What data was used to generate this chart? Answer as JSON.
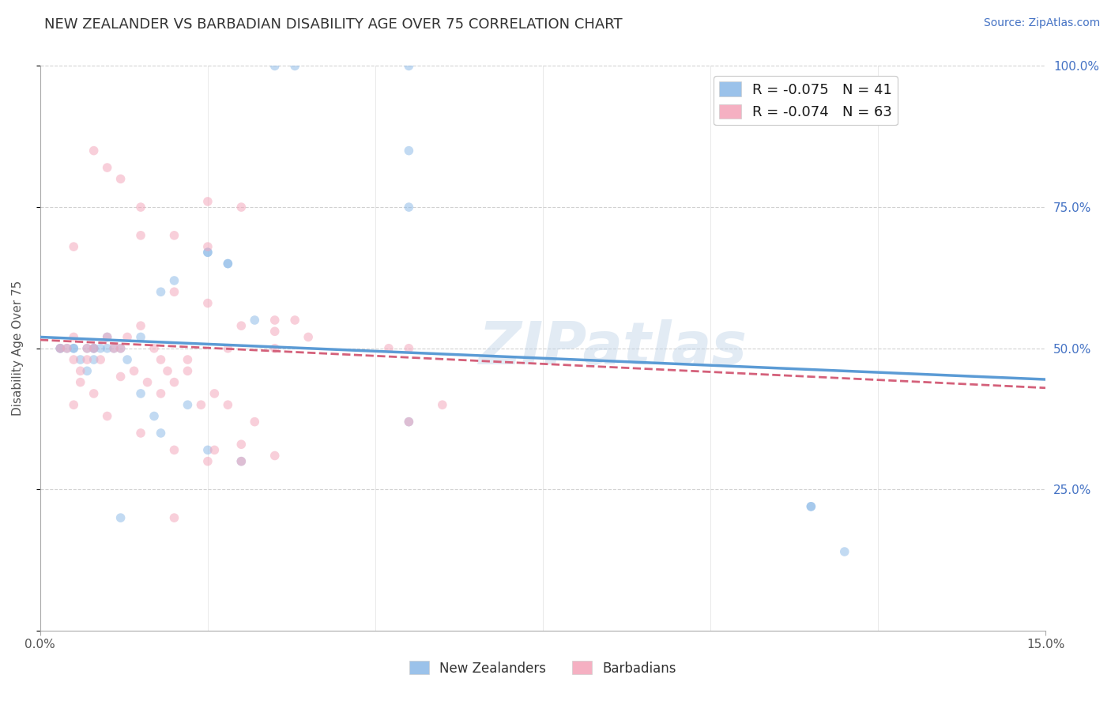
{
  "title": "NEW ZEALANDER VS BARBADIAN DISABILITY AGE OVER 75 CORRELATION CHART",
  "source": "Source: ZipAtlas.com",
  "ylabel": "Disability Age Over 75",
  "xlim": [
    0.0,
    15.0
  ],
  "ylim": [
    0,
    100
  ],
  "legend_labels_bottom": [
    "New Zealanders",
    "Barbadians"
  ],
  "nz_color": "#90bce8",
  "barb_color": "#f4a8bc",
  "nz_scatter_x": [
    1.2,
    3.5,
    3.8,
    5.5,
    5.5,
    5.5,
    2.5,
    2.8,
    2.5,
    2.8,
    3.2,
    0.5,
    0.7,
    0.8,
    1.0,
    1.2,
    1.5,
    1.8,
    2.0,
    0.3,
    0.4,
    0.5,
    0.6,
    0.7,
    0.8,
    0.9,
    1.0,
    1.1,
    1.3,
    1.5,
    1.7,
    2.2,
    2.5,
    3.0,
    1.8,
    5.5,
    11.5,
    12.0,
    11.5,
    0.8,
    0.3
  ],
  "nz_scatter_y": [
    20,
    100,
    100,
    85,
    75,
    100,
    67,
    65,
    67,
    65,
    55,
    50,
    50,
    50,
    50,
    50,
    52,
    60,
    62,
    50,
    50,
    50,
    48,
    46,
    48,
    50,
    52,
    50,
    48,
    42,
    38,
    40,
    32,
    30,
    35,
    37,
    22,
    14,
    22,
    50,
    50
  ],
  "barb_scatter_x": [
    1.0,
    1.5,
    2.5,
    2.0,
    3.0,
    2.5,
    3.5,
    2.8,
    0.3,
    0.5,
    0.7,
    0.9,
    1.1,
    1.3,
    1.5,
    1.7,
    1.9,
    0.4,
    0.5,
    0.6,
    0.7,
    0.8,
    1.0,
    1.2,
    1.4,
    1.6,
    1.8,
    2.0,
    2.2,
    2.4,
    2.6,
    2.8,
    3.2,
    3.5,
    5.2,
    5.5,
    0.5,
    0.8,
    1.0,
    1.5,
    2.0,
    2.5,
    3.0,
    2.0,
    2.5,
    3.0,
    3.5,
    4.0,
    2.0,
    5.5,
    0.8,
    1.2,
    1.5,
    0.5,
    1.8,
    2.2,
    2.6,
    3.0,
    3.5,
    3.8,
    0.6,
    1.2,
    6.0
  ],
  "barb_scatter_y": [
    82,
    70,
    76,
    70,
    75,
    68,
    53,
    50,
    50,
    52,
    50,
    48,
    50,
    52,
    54,
    50,
    46,
    50,
    48,
    46,
    48,
    50,
    52,
    50,
    46,
    44,
    42,
    44,
    46,
    40,
    42,
    40,
    37,
    50,
    50,
    50,
    40,
    42,
    38,
    35,
    32,
    30,
    33,
    60,
    58,
    54,
    55,
    52,
    20,
    37,
    85,
    80,
    75,
    68,
    48,
    48,
    32,
    30,
    31,
    55,
    44,
    45,
    40
  ],
  "watermark": "ZIPatlas",
  "bg_color": "#ffffff",
  "grid_color": "#cccccc",
  "title_fontsize": 13,
  "label_fontsize": 11,
  "tick_fontsize": 11,
  "source_fontsize": 10,
  "marker_size": 70,
  "marker_alpha": 0.55,
  "nz_line_x": [
    0.0,
    15.0
  ],
  "nz_line_y": [
    52.0,
    44.5
  ],
  "barb_line_x": [
    0.0,
    15.0
  ],
  "barb_line_y": [
    51.5,
    43.0
  ],
  "nz_line_color": "#5b9bd5",
  "barb_line_color": "#d4607a",
  "nz_R": "-0.075",
  "nz_N": "41",
  "barb_R": "-0.074",
  "barb_N": "63"
}
